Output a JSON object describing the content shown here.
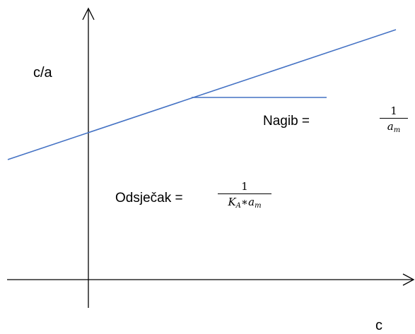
{
  "diagram": {
    "y_axis_label": "c/a",
    "x_axis_label": "c",
    "slope_label": {
      "text": "Nagib =",
      "numerator": "1",
      "denominator_var": "a",
      "denominator_sub": "m"
    },
    "intercept_label": {
      "text": "Odsječak =",
      "numerator": "1",
      "denominator_var1": "K",
      "denominator_sub1": "A",
      "operator": "∗",
      "denominator_var2": "a",
      "denominator_sub2": "m"
    },
    "colors": {
      "line": "#4472c4",
      "axes": "#000000",
      "text": "#000000"
    }
  }
}
